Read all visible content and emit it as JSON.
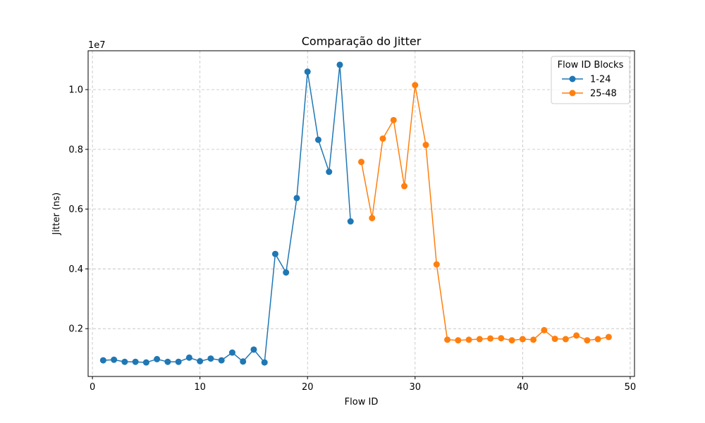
{
  "chart_data": {
    "type": "line",
    "title": "Comparação do Jitter",
    "xlabel": "Flow ID",
    "ylabel": "Jitter (ns)",
    "offset_label": "1e7",
    "xlim": [
      -0.4,
      50.4
    ],
    "ylim": [
      400000,
      11300000
    ],
    "xticks": [
      0,
      10,
      20,
      30,
      40,
      50
    ],
    "xtick_labels": [
      "0",
      "10",
      "20",
      "30",
      "40",
      "50"
    ],
    "yticks": [
      2000000,
      4000000,
      6000000,
      8000000,
      10000000
    ],
    "ytick_labels": [
      "0.2",
      "0.4",
      "0.6",
      "0.8",
      "1.0"
    ],
    "grid": true,
    "legend": {
      "title": "Flow ID Blocks",
      "position": "top-right"
    },
    "series": [
      {
        "name": "1-24",
        "color": "#1f77b4",
        "x": [
          1,
          2,
          3,
          4,
          5,
          6,
          7,
          8,
          9,
          10,
          11,
          12,
          13,
          14,
          15,
          16,
          17,
          18,
          19,
          20,
          21,
          22,
          23,
          24
        ],
        "y": [
          940000,
          960000,
          890000,
          890000,
          870000,
          980000,
          890000,
          890000,
          1030000,
          910000,
          1000000,
          940000,
          1200000,
          900000,
          1300000,
          870000,
          4500000,
          3880000,
          6370000,
          10600000,
          8320000,
          7250000,
          10830000,
          5590000
        ]
      },
      {
        "name": "25-48",
        "color": "#ff7f0e",
        "x": [
          25,
          26,
          27,
          28,
          29,
          30,
          31,
          32,
          33,
          34,
          35,
          36,
          37,
          38,
          39,
          40,
          41,
          42,
          43,
          44,
          45,
          46,
          47,
          48
        ],
        "y": [
          7580000,
          5700000,
          8360000,
          8980000,
          6770000,
          10150000,
          8150000,
          4150000,
          1630000,
          1610000,
          1630000,
          1650000,
          1670000,
          1680000,
          1610000,
          1650000,
          1630000,
          1950000,
          1660000,
          1650000,
          1770000,
          1610000,
          1650000,
          1720000
        ]
      }
    ]
  }
}
